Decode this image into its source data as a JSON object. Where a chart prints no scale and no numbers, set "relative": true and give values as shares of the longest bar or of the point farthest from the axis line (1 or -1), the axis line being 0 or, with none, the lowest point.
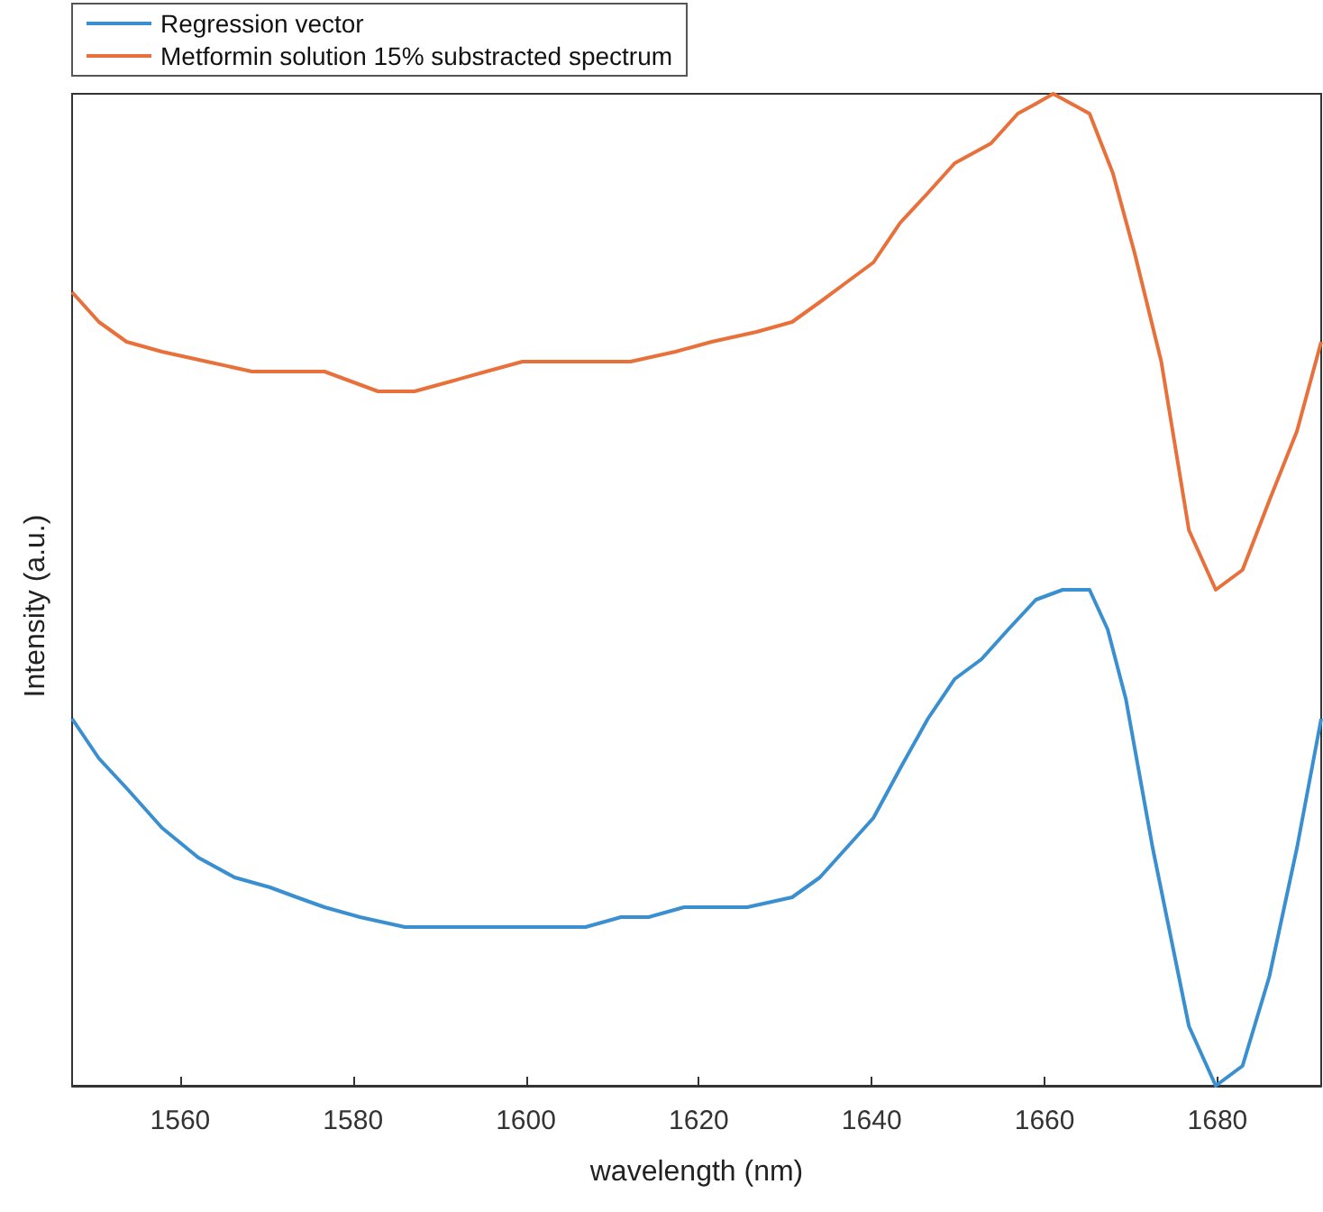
{
  "chart_data": {
    "type": "line",
    "xlabel": "wavelength (nm)",
    "ylabel": "Intensity (a.u.)",
    "relative": true,
    "legend": "top left",
    "grid": false,
    "marker": "none",
    "line_style": "solid",
    "xlim": [
      1547.5,
      1692
    ],
    "xticks": [
      1560,
      1580,
      1600,
      1620,
      1640,
      1660,
      1680
    ],
    "series": [
      {
        "name": "Regression vector",
        "color": "#3a8fd0",
        "x": [
          1547.5,
          1550.6,
          1553.8,
          1557.9,
          1562.1,
          1566.3,
          1570.4,
          1573.5,
          1576.7,
          1580.8,
          1586,
          1591.3,
          1595.4,
          1599.6,
          1602.7,
          1606.9,
          1611,
          1614.2,
          1618.3,
          1622.5,
          1625.6,
          1630.8,
          1634,
          1637.1,
          1640.2,
          1643.3,
          1646.5,
          1649.6,
          1652.7,
          1655.8,
          1659,
          1662.1,
          1665.2,
          1667.3,
          1669.4,
          1672.5,
          1676.7,
          1679.8,
          1682.9,
          1686,
          1689.2,
          1692
        ],
        "values": [
          0.37,
          0.33,
          0.3,
          0.26,
          0.23,
          0.21,
          0.2,
          0.19,
          0.18,
          0.17,
          0.16,
          0.16,
          0.16,
          0.16,
          0.16,
          0.16,
          0.17,
          0.17,
          0.18,
          0.18,
          0.18,
          0.19,
          0.21,
          0.24,
          0.27,
          0.32,
          0.37,
          0.41,
          0.43,
          0.46,
          0.49,
          0.5,
          0.5,
          0.46,
          0.39,
          0.24,
          0.06,
          0,
          0.02,
          0.11,
          0.24,
          0.37
        ]
      },
      {
        "name": "Metformin solution 15% substracted spectrum",
        "color": "#e8703a",
        "x": [
          1547.5,
          1550.6,
          1553.8,
          1557.9,
          1563.1,
          1568.3,
          1572.5,
          1576.7,
          1579.8,
          1582.9,
          1587.1,
          1591.3,
          1595.4,
          1599.6,
          1603.8,
          1607.9,
          1612.1,
          1617.3,
          1621.5,
          1626.7,
          1630.8,
          1634,
          1637.1,
          1640.2,
          1643.3,
          1646.5,
          1649.6,
          1653.8,
          1656.9,
          1659,
          1661,
          1663.1,
          1665.2,
          1667.9,
          1670.4,
          1673.5,
          1676.7,
          1679.8,
          1682.9,
          1686,
          1689.2,
          1692
        ],
        "values": [
          0.8,
          0.77,
          0.75,
          0.74,
          0.73,
          0.72,
          0.72,
          0.72,
          0.71,
          0.7,
          0.7,
          0.71,
          0.72,
          0.73,
          0.73,
          0.73,
          0.73,
          0.74,
          0.75,
          0.76,
          0.77,
          0.79,
          0.81,
          0.83,
          0.87,
          0.9,
          0.93,
          0.95,
          0.98,
          0.99,
          1,
          0.99,
          0.98,
          0.92,
          0.84,
          0.73,
          0.56,
          0.5,
          0.52,
          0.59,
          0.66,
          0.75
        ]
      }
    ]
  }
}
